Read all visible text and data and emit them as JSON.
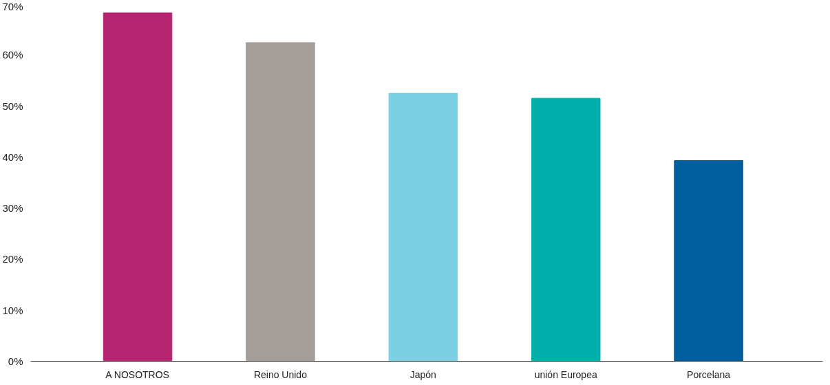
{
  "chart_data": {
    "type": "bar",
    "categories": [
      "A NOSOTROS",
      "Reino Unido",
      "Japón",
      "unión Europea",
      "Porcelana"
    ],
    "values": [
      68.2,
      62.4,
      52.5,
      51.5,
      39.3
    ],
    "colors": [
      "#b5256f",
      "#a39e9a",
      "#7dd0e1",
      "#00aeaa",
      "#005e9e"
    ],
    "ylim": [
      0,
      70
    ],
    "yticks": [
      {
        "value": 0,
        "label": "0%"
      },
      {
        "value": 10,
        "label": "10%"
      },
      {
        "value": 20,
        "label": "20%"
      },
      {
        "value": 30,
        "label": "30%"
      },
      {
        "value": 40,
        "label": "40%"
      },
      {
        "value": 50,
        "label": "50%"
      },
      {
        "value": 60,
        "label": "60%"
      },
      {
        "value": 70,
        "label": "70%"
      }
    ],
    "grid": false
  }
}
